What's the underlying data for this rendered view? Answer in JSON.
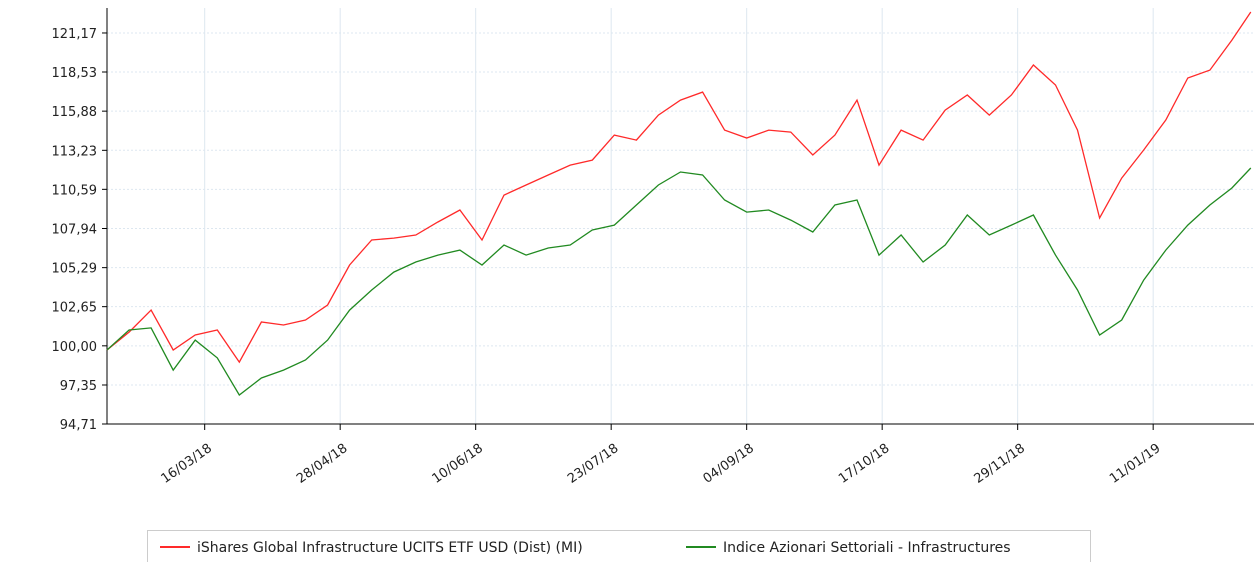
{
  "chart_data": {
    "type": "line",
    "x": [
      "13/02/18",
      "20/02/18",
      "27/02/18",
      "06/03/18",
      "13/03/18",
      "20/03/18",
      "27/03/18",
      "03/04/18",
      "10/04/18",
      "17/04/18",
      "24/04/18",
      "01/05/18",
      "08/05/18",
      "15/05/18",
      "22/05/18",
      "29/05/18",
      "05/06/18",
      "12/06/18",
      "19/06/18",
      "26/06/18",
      "03/07/18",
      "10/07/18",
      "17/07/18",
      "24/07/18",
      "31/07/18",
      "07/08/18",
      "14/08/18",
      "21/08/18",
      "28/08/18",
      "04/09/18",
      "11/09/18",
      "18/09/18",
      "25/09/18",
      "02/10/18",
      "09/10/18",
      "16/10/18",
      "23/10/18",
      "30/10/18",
      "06/11/18",
      "13/11/18",
      "20/11/18",
      "27/11/18",
      "04/12/18",
      "11/12/18",
      "18/12/18",
      "25/12/18",
      "01/01/19",
      "08/01/19",
      "15/01/19",
      "22/01/19",
      "29/01/19",
      "05/02/19",
      "11/02/19"
    ],
    "series": [
      {
        "name": "iShares Global Infrastructure UCITS ETF USD (Dist) (MI)",
        "color": "#ff2a2a",
        "values": [
          99.72,
          100.93,
          102.42,
          99.72,
          100.73,
          101.07,
          98.9,
          101.61,
          101.41,
          101.75,
          102.76,
          105.47,
          107.16,
          107.29,
          107.5,
          108.38,
          109.19,
          107.16,
          110.2,
          110.88,
          111.56,
          112.23,
          112.57,
          114.26,
          113.92,
          115.61,
          116.63,
          117.17,
          114.6,
          114.06,
          114.6,
          114.46,
          112.91,
          114.26,
          116.63,
          112.23,
          114.6,
          113.92,
          115.95,
          116.97,
          115.61,
          116.97,
          119.0,
          117.65,
          114.6,
          108.65,
          111.35,
          113.25,
          115.28,
          118.12,
          118.66,
          120.69,
          122.59
        ]
      },
      {
        "name": "Indice Azionari Settoriali - Infrastructures",
        "color": "#218a21",
        "values": [
          99.72,
          101.07,
          101.21,
          98.36,
          100.39,
          99.18,
          96.67,
          97.82,
          98.36,
          99.04,
          100.39,
          102.42,
          103.78,
          104.99,
          105.67,
          106.14,
          106.48,
          105.47,
          106.82,
          106.14,
          106.62,
          106.82,
          107.84,
          108.17,
          109.53,
          110.88,
          111.76,
          111.56,
          109.87,
          109.05,
          109.19,
          108.51,
          107.7,
          109.53,
          109.87,
          106.14,
          107.5,
          105.67,
          106.82,
          108.85,
          107.5,
          108.17,
          108.85,
          106.14,
          103.78,
          100.73,
          101.75,
          104.45,
          106.48,
          108.17,
          109.53,
          110.68,
          112.03
        ]
      }
    ],
    "xlim": [
      "13/02/18",
      "12/02/19"
    ],
    "xticks": [
      "16/03/18",
      "28/04/18",
      "10/06/18",
      "23/07/18",
      "04/09/18",
      "17/10/18",
      "29/11/18",
      "11/01/19"
    ],
    "ylim": [
      94.71,
      122.86
    ],
    "yticks": [
      {
        "value": 94.71,
        "label": "94,71"
      },
      {
        "value": 97.35,
        "label": "97,35"
      },
      {
        "value": 100,
        "label": "100,00"
      },
      {
        "value": 102.65,
        "label": "102,65"
      },
      {
        "value": 105.29,
        "label": "105,29"
      },
      {
        "value": 107.94,
        "label": "107,94"
      },
      {
        "value": 110.59,
        "label": "110,59"
      },
      {
        "value": 113.23,
        "label": "113,23"
      },
      {
        "value": 115.88,
        "label": "115,88"
      },
      {
        "value": 118.53,
        "label": "118,53"
      },
      {
        "value": 121.17,
        "label": "121,17"
      }
    ],
    "grid": true,
    "legend": "bottom"
  }
}
